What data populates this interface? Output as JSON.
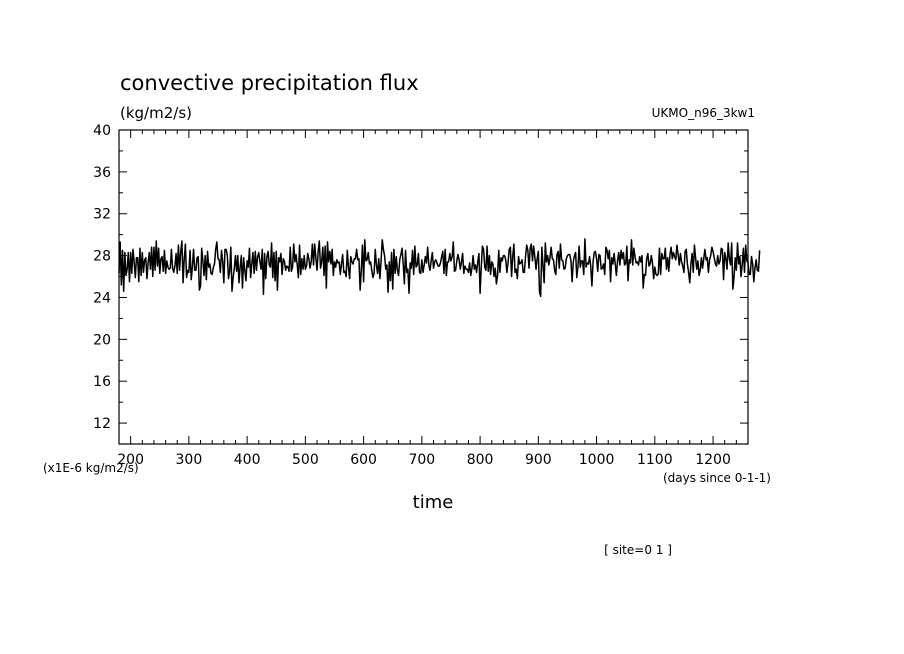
{
  "chart_data": {
    "type": "line",
    "title": "convective precipitation flux",
    "units": "(kg/m2/s)",
    "dataset_label": "UKMO_n96_3kw1",
    "xlabel": "time",
    "x_units": "(days since 0-1-1)",
    "y_scale_note": "(x1E-6 kg/m2/s)",
    "site_label": "[ site=0 1 ]",
    "xlim": [
      180,
      1260
    ],
    "ylim": [
      10,
      40
    ],
    "x_ticks": [
      200,
      300,
      400,
      500,
      600,
      700,
      800,
      900,
      1000,
      1100,
      1200
    ],
    "y_ticks": [
      12,
      16,
      20,
      24,
      28,
      32,
      36,
      40
    ],
    "grid": false,
    "colors": {
      "line": "#000000",
      "axis": "#000000",
      "background": "#ffffff"
    },
    "series": [
      {
        "x_start": 180,
        "x_step": 2,
        "values": [
          26.3,
          29.3,
          25.2,
          28.5,
          24.6,
          28.3,
          26.1,
          26.7,
          28.3,
          25.5,
          28.3,
          26.3,
          28.6,
          27.4,
          25.9,
          27.8,
          27.8,
          25.5,
          28.7,
          26.1,
          28.3,
          26.4,
          27.6,
          27.8,
          25.8,
          27.3,
          28.3,
          26.7,
          28.8,
          26.0,
          28.8,
          26.6,
          29.4,
          27.0,
          28.7,
          26.3,
          27.7,
          27.9,
          26.5,
          28.5,
          26.3,
          27.5,
          26.9,
          26.7,
          26.8,
          28.6,
          26.8,
          26.4,
          27.0,
          28.2,
          26.3,
          29.0,
          26.6,
          28.4,
          29.4,
          25.4,
          27.7,
          29.1,
          25.9,
          26.6,
          26.4,
          28.5,
          25.7,
          26.9,
          28.6,
          26.6,
          26.6,
          27.8,
          27.9,
          24.7,
          25.1,
          28.7,
          27.5,
          26.1,
          28.0,
          25.7,
          28.4,
          26.9,
          27.2,
          26.3,
          26.2,
          26.9,
          27.2,
          28.6,
          29.3,
          27.7,
          27.6,
          26.4,
          28.5,
          27.5,
          25.4,
          28.6,
          28.6,
          28.0,
          25.8,
          26.5,
          28.8,
          24.6,
          25.9,
          26.8,
          28.0,
          26.5,
          28.0,
          25.4,
          26.9,
          28.0,
          24.9,
          27.8,
          26.6,
          25.6,
          27.5,
          26.9,
          28.7,
          25.9,
          27.2,
          28.3,
          26.3,
          28.4,
          26.6,
          27.9,
          28.3,
          27.4,
          26.7,
          28.6,
          24.3,
          28.2,
          25.8,
          27.9,
          28.4,
          27.1,
          26.9,
          29.2,
          25.9,
          28.3,
          25.6,
          28.4,
          24.7,
          27.8,
          27.4,
          28.2,
          26.2,
          27.7,
          27.5,
          26.6,
          27.0,
          26.9,
          26.5,
          28.8,
          26.5,
          26.9,
          29.1,
          27.4,
          28.1,
          27.1,
          25.9,
          29.0,
          26.2,
          27.7,
          26.7,
          28.0,
          26.7,
          27.0,
          28.2,
          27.7,
          26.8,
          27.4,
          29.1,
          27.1,
          29.1,
          27.8,
          26.6,
          28.4,
          29.4,
          26.8,
          27.4,
          28.8,
          26.1,
          28.9,
          24.9,
          29.3,
          27.4,
          28.4,
          27.2,
          28.6,
          26.1,
          27.4,
          26.9,
          27.6,
          27.3,
          27.4,
          26.2,
          27.2,
          28.1,
          26.4,
          26.5,
          26.0,
          28.5,
          26.9,
          25.8,
          27.9,
          27.4,
          27.2,
          27.7,
          27.7,
          28.6,
          27.6,
          27.7,
          24.7,
          26.6,
          29.0,
          25.5,
          29.5,
          27.5,
          27.6,
          28.3,
          27.2,
          27.4,
          26.6,
          25.9,
          26.3,
          28.6,
          27.1,
          26.3,
          27.7,
          25.8,
          27.5,
          29.5,
          28.6,
          28.0,
          26.7,
          27.1,
          24.5,
          27.4,
          25.6,
          28.3,
          24.8,
          28.6,
          26.3,
          27.9,
          26.6,
          26.1,
          27.6,
          28.1,
          28.7,
          27.2,
          25.3,
          28.5,
          26.4,
          26.7,
          24.4,
          27.3,
          26.8,
          28.5,
          26.2,
          28.9,
          26.9,
          27.1,
          28.2,
          26.4,
          26.3,
          27.6,
          26.4,
          27.1,
          27.9,
          27.3,
          28.8,
          27.1,
          26.6,
          27.5,
          28.3,
          26.8,
          27.4,
          27.6,
          27.3,
          27.0,
          27.0,
          27.3,
          27.9,
          28.4,
          26.3,
          28.6,
          26.1,
          27.4,
          27.4,
          28.2,
          27.5,
          27.9,
          29.3,
          26.5,
          26.6,
          27.5,
          28.1,
          27.6,
          26.7,
          27.4,
          28.2,
          26.3,
          27.0,
          26.7,
          26.7,
          26.4,
          27.3,
          26.1,
          26.8,
          28.0,
          26.7,
          27.1,
          26.4,
          27.4,
          28.2,
          24.4,
          26.9,
          28.9,
          28.6,
          26.9,
          26.6,
          28.9,
          26.5,
          28.0,
          26.2,
          27.4,
          27.2,
          26.0,
          26.8,
          25.3,
          26.1,
          28.5,
          26.4,
          27.8,
          27.5,
          28.0,
          28.0,
          27.6,
          26.4,
          27.3,
          28.6,
          28.8,
          26.0,
          27.9,
          29.1,
          26.4,
          26.7,
          25.8,
          27.9,
          27.2,
          27.3,
          27.6,
          26.4,
          26.4,
          27.9,
          29.0,
          28.5,
          26.8,
          28.7,
          29.1,
          27.5,
          28.9,
          27.9,
          26.7,
          27.7,
          28.4,
          24.5,
          24.1,
          28.8,
          27.1,
          25.4,
          29.2,
          27.4,
          28.0,
          27.1,
          27.8,
          28.8,
          27.7,
          27.6,
          26.6,
          26.2,
          28.1,
          28.4,
          26.8,
          29.1,
          27.6,
          27.5,
          26.7,
          26.8,
          27.7,
          28.0,
          28.1,
          28.1,
          27.5,
          25.5,
          27.4,
          28.0,
          28.3,
          25.9,
          26.9,
          28.9,
          26.9,
          27.5,
          27.5,
          26.2,
          29.6,
          26.9,
          27.3,
          27.2,
          27.9,
          27.0,
          25.1,
          27.4,
          28.3,
          28.4,
          27.7,
          26.5,
          28.1,
          28.0,
          26.7,
          26.8,
          27.2,
          26.2,
          28.8,
          28.5,
          27.7,
          28.5,
          25.5,
          27.8,
          27.2,
          28.2,
          27.2,
          26.1,
          27.5,
          28.3,
          27.1,
          28.5,
          27.7,
          28.3,
          27.1,
          27.2,
          28.9,
          25.6,
          27.6,
          27.3,
          29.5,
          27.1,
          28.7,
          27.9,
          27.3,
          27.4,
          27.1,
          27.9,
          27.4,
          28.0,
          24.9,
          26.2,
          26.1,
          27.7,
          28.2,
          27.0,
          27.2,
          28.0,
          27.3,
          25.8,
          26.9,
          26.2,
          26.1,
          26.3,
          28.7,
          26.2,
          28.2,
          27.7,
          27.7,
          28.7,
          26.7,
          27.8,
          26.5,
          28.1,
          28.8,
          27.7,
          28.3,
          27.9,
          27.6,
          29.0,
          28.1,
          27.1,
          28.2,
          27.4,
          27.0,
          26.4,
          28.4,
          28.6,
          27.2,
          26.4,
          25.4,
          27.2,
          28.2,
          26.4,
          29.0,
          27.8,
          26.7,
          27.5,
          26.1,
          26.6,
          27.8,
          26.8,
          27.7,
          28.6,
          27.6,
          27.8,
          26.4,
          27.6,
          28.0,
          28.8,
          28.4,
          27.8,
          27.2,
          27.0,
          28.0,
          27.2,
          27.5,
          28.7,
          28.6,
          25.7,
          28.3,
          27.7,
          26.7,
          29.2,
          27.7,
          27.1,
          29.2,
          24.8,
          25.9,
          27.8,
          26.6,
          29.2,
          27.2,
          27.9,
          26.0,
          27.1,
          28.7,
          26.4,
          29.0,
          27.5,
          27.3,
          26.2,
          26.2,
          27.9,
          27.2,
          25.5,
          26.8,
          27.6,
          26.6,
          26.5,
          28.5
        ]
      }
    ]
  }
}
